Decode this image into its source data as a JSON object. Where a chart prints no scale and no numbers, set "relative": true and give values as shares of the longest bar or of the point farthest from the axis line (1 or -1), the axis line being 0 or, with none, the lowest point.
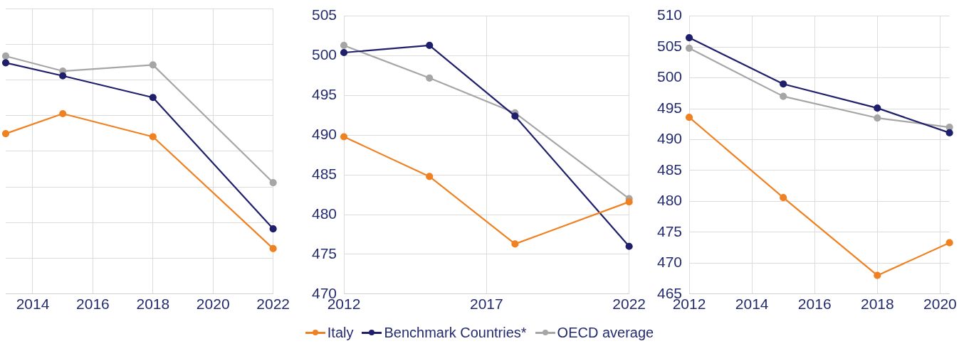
{
  "chart_data": [
    {
      "type": "line",
      "relative": true,
      "grid": true,
      "marker": "circle",
      "legend": false,
      "tick_labels": "x",
      "xlim": [
        2013.1,
        2022
      ],
      "xticks": [
        2014,
        2016,
        2018,
        2020,
        2022
      ],
      "series": [
        {
          "color": "#f08122",
          "x": [
            2013.1,
            2015,
            2018,
            2022
          ],
          "values": [
            0.674,
            0.758,
            0.661,
            0.191
          ]
        },
        {
          "color": "#1f1f6b",
          "x": [
            2013.1,
            2015,
            2018,
            2022
          ],
          "values": [
            0.972,
            0.917,
            0.826,
            0.274
          ]
        },
        {
          "color": "#a6a6a6",
          "x": [
            2013.1,
            2015,
            2018,
            2022
          ],
          "values": [
            1,
            0.937,
            0.963,
            0.468
          ]
        }
      ]
    },
    {
      "type": "line",
      "grid": true,
      "marker": "circle",
      "legend": "bottom",
      "xlim": [
        2012,
        2022
      ],
      "xticks": [
        2012,
        2017,
        2022
      ],
      "ylim": [
        470,
        505
      ],
      "yticks": [
        470,
        475,
        480,
        485,
        490,
        495,
        500,
        505
      ],
      "series": [
        {
          "name": "Italy",
          "color": "#f08122",
          "x": [
            2012,
            2015,
            2018,
            2022
          ],
          "values": [
            489.8,
            484.8,
            476.3,
            481.6
          ]
        },
        {
          "name": "Benchmark Countries*",
          "color": "#1f1f6b",
          "x": [
            2012,
            2015,
            2018,
            2022
          ],
          "values": [
            500.4,
            501.3,
            492.4,
            476.0
          ]
        },
        {
          "name": "OECD average",
          "color": "#a6a6a6",
          "x": [
            2012,
            2015,
            2018,
            2022
          ],
          "values": [
            501.3,
            497.2,
            492.8,
            482.0
          ]
        }
      ]
    },
    {
      "type": "line",
      "grid": true,
      "marker": "circle",
      "legend": false,
      "xlim": [
        2012,
        2020.3
      ],
      "xticks": [
        2012,
        2014,
        2016,
        2018,
        2020
      ],
      "ylim": [
        465,
        510
      ],
      "yticks": [
        465,
        470,
        475,
        480,
        485,
        490,
        495,
        500,
        505,
        510
      ],
      "series": [
        {
          "color": "#f08122",
          "x": [
            2012,
            2015,
            2018,
            2020.3
          ],
          "values": [
            493.6,
            480.6,
            468.0,
            473.3
          ]
        },
        {
          "color": "#1f1f6b",
          "x": [
            2012,
            2015,
            2018,
            2020.3
          ],
          "values": [
            506.5,
            499.0,
            495.1,
            491.1
          ]
        },
        {
          "color": "#a6a6a6",
          "x": [
            2012,
            2015,
            2018,
            2020.3
          ],
          "values": [
            504.8,
            497.0,
            493.5,
            492.0
          ]
        }
      ]
    }
  ]
}
